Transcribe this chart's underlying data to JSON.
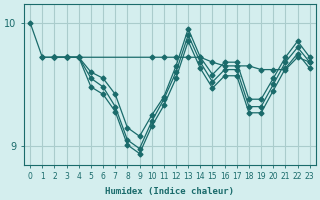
{
  "xlabel": "Humidex (Indice chaleur)",
  "background_color": "#d4eeee",
  "line_color": "#1a6b6b",
  "grid_color": "#aacccc",
  "series": [
    {
      "x": [
        0,
        1,
        2,
        3,
        4,
        5,
        6,
        7,
        8,
        9,
        10,
        11,
        12,
        13,
        14,
        15,
        16,
        17,
        18,
        19,
        20,
        21,
        22,
        23
      ],
      "y": [
        10.0,
        9.72,
        9.72,
        9.72,
        9.72,
        9.6,
        9.55,
        9.42,
        9.15,
        9.08,
        9.25,
        9.4,
        9.65,
        9.95,
        9.72,
        9.58,
        9.68,
        9.68,
        9.38,
        9.38,
        9.55,
        9.72,
        9.85,
        9.72
      ]
    },
    {
      "x": [
        1,
        2,
        3,
        4,
        5,
        6,
        7,
        8,
        9,
        10,
        11,
        12,
        13,
        14,
        15,
        16,
        17,
        18,
        19,
        20,
        21,
        22,
        23
      ],
      "y": [
        9.72,
        9.72,
        9.72,
        9.72,
        9.55,
        9.48,
        9.32,
        9.05,
        8.98,
        9.2,
        9.38,
        9.6,
        9.9,
        9.68,
        9.52,
        9.62,
        9.62,
        9.32,
        9.32,
        9.5,
        9.68,
        9.8,
        9.68
      ]
    },
    {
      "x": [
        2,
        3,
        4,
        5,
        6,
        7,
        8,
        9,
        10,
        11,
        12,
        13,
        14,
        15,
        16,
        17,
        18,
        19,
        20,
        21,
        22,
        23
      ],
      "y": [
        9.72,
        9.72,
        9.72,
        9.48,
        9.42,
        9.28,
        9.01,
        8.94,
        9.16,
        9.33,
        9.55,
        9.85,
        9.63,
        9.47,
        9.57,
        9.57,
        9.27,
        9.27,
        9.45,
        9.63,
        9.75,
        9.63
      ]
    },
    {
      "x": [
        2,
        3,
        4,
        10,
        11,
        12,
        13,
        14,
        15,
        16,
        17,
        18,
        19,
        20,
        21,
        22,
        23
      ],
      "y": [
        9.72,
        9.72,
        9.72,
        9.72,
        9.72,
        9.72,
        9.72,
        9.72,
        9.68,
        9.65,
        9.65,
        9.65,
        9.62,
        9.62,
        9.62,
        9.72,
        9.68
      ]
    }
  ],
  "ylim": [
    8.85,
    10.15
  ],
  "xlim": [
    -0.5,
    23.5
  ],
  "yticks": [
    9,
    10
  ],
  "xticks": [
    0,
    1,
    2,
    3,
    4,
    5,
    6,
    7,
    8,
    9,
    10,
    11,
    12,
    13,
    14,
    15,
    16,
    17,
    18,
    19,
    20,
    21,
    22,
    23
  ]
}
